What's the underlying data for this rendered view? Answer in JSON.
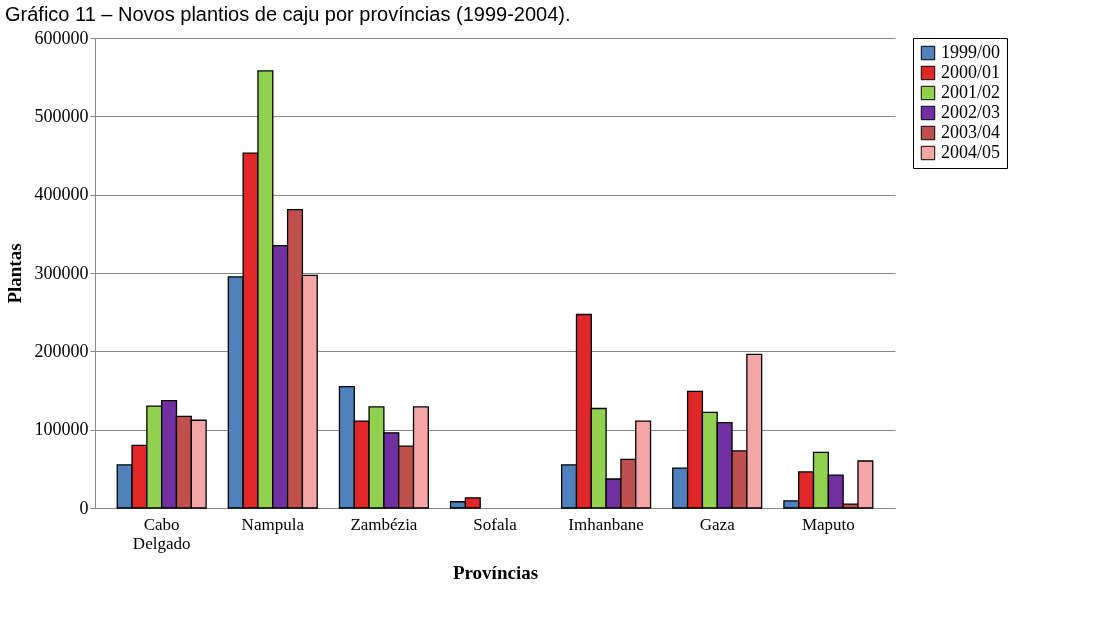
{
  "chart_data": {
    "type": "bar",
    "title": "Gráfico 11 – Novos plantios de caju por províncias (1999-2004).",
    "xlabel": "Províncias",
    "ylabel": "Plantas",
    "categories": [
      "Cabo Delgado",
      "Nampula",
      "Zambézia",
      "Sofala",
      "Imhanbane",
      "Gaza",
      "Maputo"
    ],
    "series": [
      {
        "name": "1999/00",
        "color": "#4f81bd",
        "values": [
          55000,
          295000,
          155000,
          8000,
          55000,
          51000,
          9000
        ]
      },
      {
        "name": "2000/01",
        "color": "#e02828",
        "values": [
          80000,
          453000,
          111000,
          13000,
          247000,
          149000,
          46000
        ]
      },
      {
        "name": "2001/02",
        "color": "#92d050",
        "values": [
          130000,
          558000,
          129000,
          null,
          127000,
          122000,
          71000
        ]
      },
      {
        "name": "2002/03",
        "color": "#7030a0",
        "values": [
          137000,
          335000,
          96000,
          null,
          37000,
          109000,
          42000
        ]
      },
      {
        "name": "2003/04",
        "color": "#c0504d",
        "values": [
          117000,
          381000,
          79000,
          null,
          62000,
          73000,
          5000
        ]
      },
      {
        "name": "2004/05",
        "color": "#f4a6a6",
        "values": [
          112000,
          297000,
          129000,
          null,
          111000,
          196000,
          60000
        ]
      }
    ],
    "ylim": [
      0,
      600000
    ],
    "yticks": [
      0,
      100000,
      200000,
      300000,
      400000,
      500000,
      600000
    ],
    "grid": "y",
    "legend": "right"
  }
}
